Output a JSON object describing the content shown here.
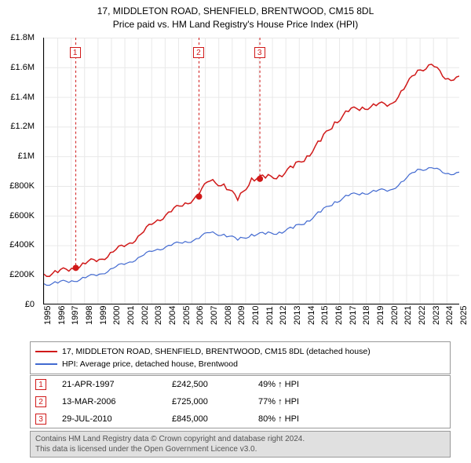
{
  "title": {
    "line1": "17, MIDDLETON ROAD, SHENFIELD, BRENTWOOD, CM15 8DL",
    "line2": "Price paid vs. HM Land Registry's House Price Index (HPI)"
  },
  "chart": {
    "type": "line",
    "xlim": [
      1995,
      2025
    ],
    "ylim": [
      0,
      1800000
    ],
    "ytick_step": 200000,
    "yticks": [
      "£0",
      "£200K",
      "£400K",
      "£600K",
      "£800K",
      "£1M",
      "£1.2M",
      "£1.4M",
      "£1.6M",
      "£1.8M"
    ],
    "xticks": [
      "1995",
      "1996",
      "1997",
      "1998",
      "1999",
      "2000",
      "2001",
      "2002",
      "2003",
      "2004",
      "2005",
      "2006",
      "2007",
      "2008",
      "2009",
      "2010",
      "2011",
      "2012",
      "2013",
      "2014",
      "2015",
      "2016",
      "2017",
      "2018",
      "2019",
      "2020",
      "2021",
      "2022",
      "2023",
      "2024",
      "2025"
    ],
    "background_color": "#ffffff",
    "grid_color": "#e8e8e8",
    "series": [
      {
        "name": "property",
        "color": "#d01919",
        "width": 1.5,
        "points": [
          [
            1995,
            200000
          ],
          [
            1996,
            210000
          ],
          [
            1997,
            240000
          ],
          [
            1998,
            270000
          ],
          [
            1999,
            300000
          ],
          [
            2000,
            350000
          ],
          [
            2001,
            400000
          ],
          [
            2002,
            470000
          ],
          [
            2003,
            550000
          ],
          [
            2004,
            620000
          ],
          [
            2005,
            660000
          ],
          [
            2006,
            730000
          ],
          [
            2007,
            830000
          ],
          [
            2008,
            810000
          ],
          [
            2009,
            700000
          ],
          [
            2010,
            850000
          ],
          [
            2011,
            850000
          ],
          [
            2012,
            870000
          ],
          [
            2013,
            920000
          ],
          [
            2014,
            1000000
          ],
          [
            2015,
            1100000
          ],
          [
            2016,
            1230000
          ],
          [
            2017,
            1300000
          ],
          [
            2018,
            1330000
          ],
          [
            2019,
            1340000
          ],
          [
            2020,
            1350000
          ],
          [
            2021,
            1450000
          ],
          [
            2022,
            1580000
          ],
          [
            2023,
            1620000
          ],
          [
            2024,
            1520000
          ],
          [
            2025,
            1540000
          ]
        ]
      },
      {
        "name": "hpi",
        "color": "#4169d0",
        "width": 1.2,
        "points": [
          [
            1995,
            135000
          ],
          [
            1996,
            140000
          ],
          [
            1997,
            155000
          ],
          [
            1998,
            175000
          ],
          [
            1999,
            200000
          ],
          [
            2000,
            240000
          ],
          [
            2001,
            275000
          ],
          [
            2002,
            320000
          ],
          [
            2003,
            360000
          ],
          [
            2004,
            395000
          ],
          [
            2005,
            410000
          ],
          [
            2006,
            440000
          ],
          [
            2007,
            480000
          ],
          [
            2008,
            470000
          ],
          [
            2009,
            430000
          ],
          [
            2010,
            470000
          ],
          [
            2011,
            470000
          ],
          [
            2012,
            485000
          ],
          [
            2013,
            510000
          ],
          [
            2014,
            560000
          ],
          [
            2015,
            620000
          ],
          [
            2016,
            690000
          ],
          [
            2017,
            730000
          ],
          [
            2018,
            750000
          ],
          [
            2019,
            760000
          ],
          [
            2020,
            770000
          ],
          [
            2021,
            830000
          ],
          [
            2022,
            910000
          ],
          [
            2023,
            920000
          ],
          [
            2024,
            880000
          ],
          [
            2025,
            890000
          ]
        ]
      }
    ],
    "markers": [
      {
        "num": "1",
        "year": 1997.3,
        "value": 242500
      },
      {
        "num": "2",
        "year": 2006.2,
        "value": 725000
      },
      {
        "num": "3",
        "year": 2010.6,
        "value": 845000
      }
    ]
  },
  "legend": {
    "items": [
      {
        "color": "#d01919",
        "label": "17, MIDDLETON ROAD, SHENFIELD, BRENTWOOD, CM15 8DL (detached house)"
      },
      {
        "color": "#4169d0",
        "label": "HPI: Average price, detached house, Brentwood"
      }
    ]
  },
  "transactions": [
    {
      "num": "1",
      "date": "21-APR-1997",
      "price": "£242,500",
      "hpi": "49% ↑ HPI"
    },
    {
      "num": "2",
      "date": "13-MAR-2006",
      "price": "£725,000",
      "hpi": "77% ↑ HPI"
    },
    {
      "num": "3",
      "date": "29-JUL-2010",
      "price": "£845,000",
      "hpi": "80% ↑ HPI"
    }
  ],
  "footer": {
    "line1": "Contains HM Land Registry data © Crown copyright and database right 2024.",
    "line2": "This data is licensed under the Open Government Licence v3.0."
  }
}
